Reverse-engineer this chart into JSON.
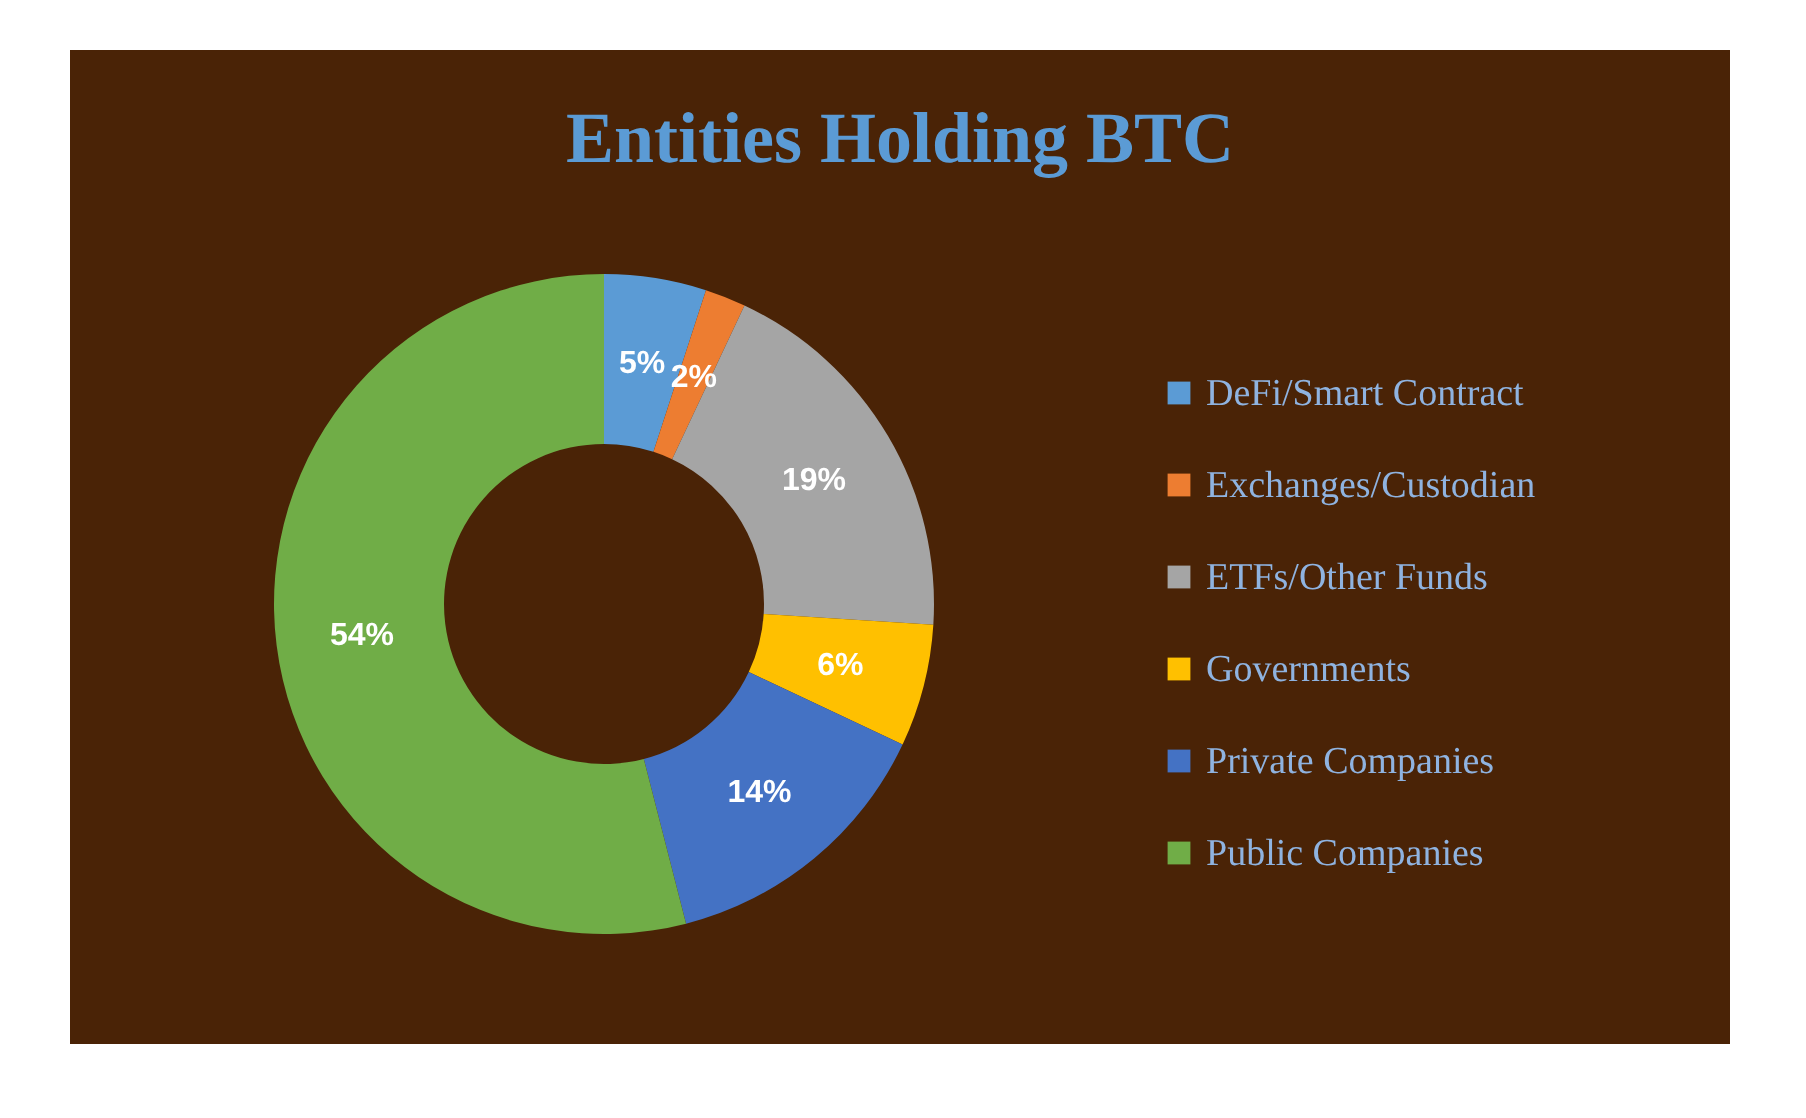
{
  "chart_data": {
    "type": "donut",
    "title": "Entities Holding BTC",
    "categories": [
      "DeFi/Smart Contract",
      "Exchanges/Custodian",
      "ETFs/Other Funds",
      "Governments",
      "Private Companies",
      "Public Companies"
    ],
    "values": [
      5,
      2,
      19,
      6,
      14,
      54
    ],
    "colors": [
      "#5b9bd5",
      "#ed7d31",
      "#a5a5a5",
      "#ffc000",
      "#4472c4",
      "#70ad47"
    ],
    "value_labels": [
      "5%",
      "2%",
      "19%",
      "6%",
      "14%",
      "54%"
    ],
    "legend": "right"
  }
}
